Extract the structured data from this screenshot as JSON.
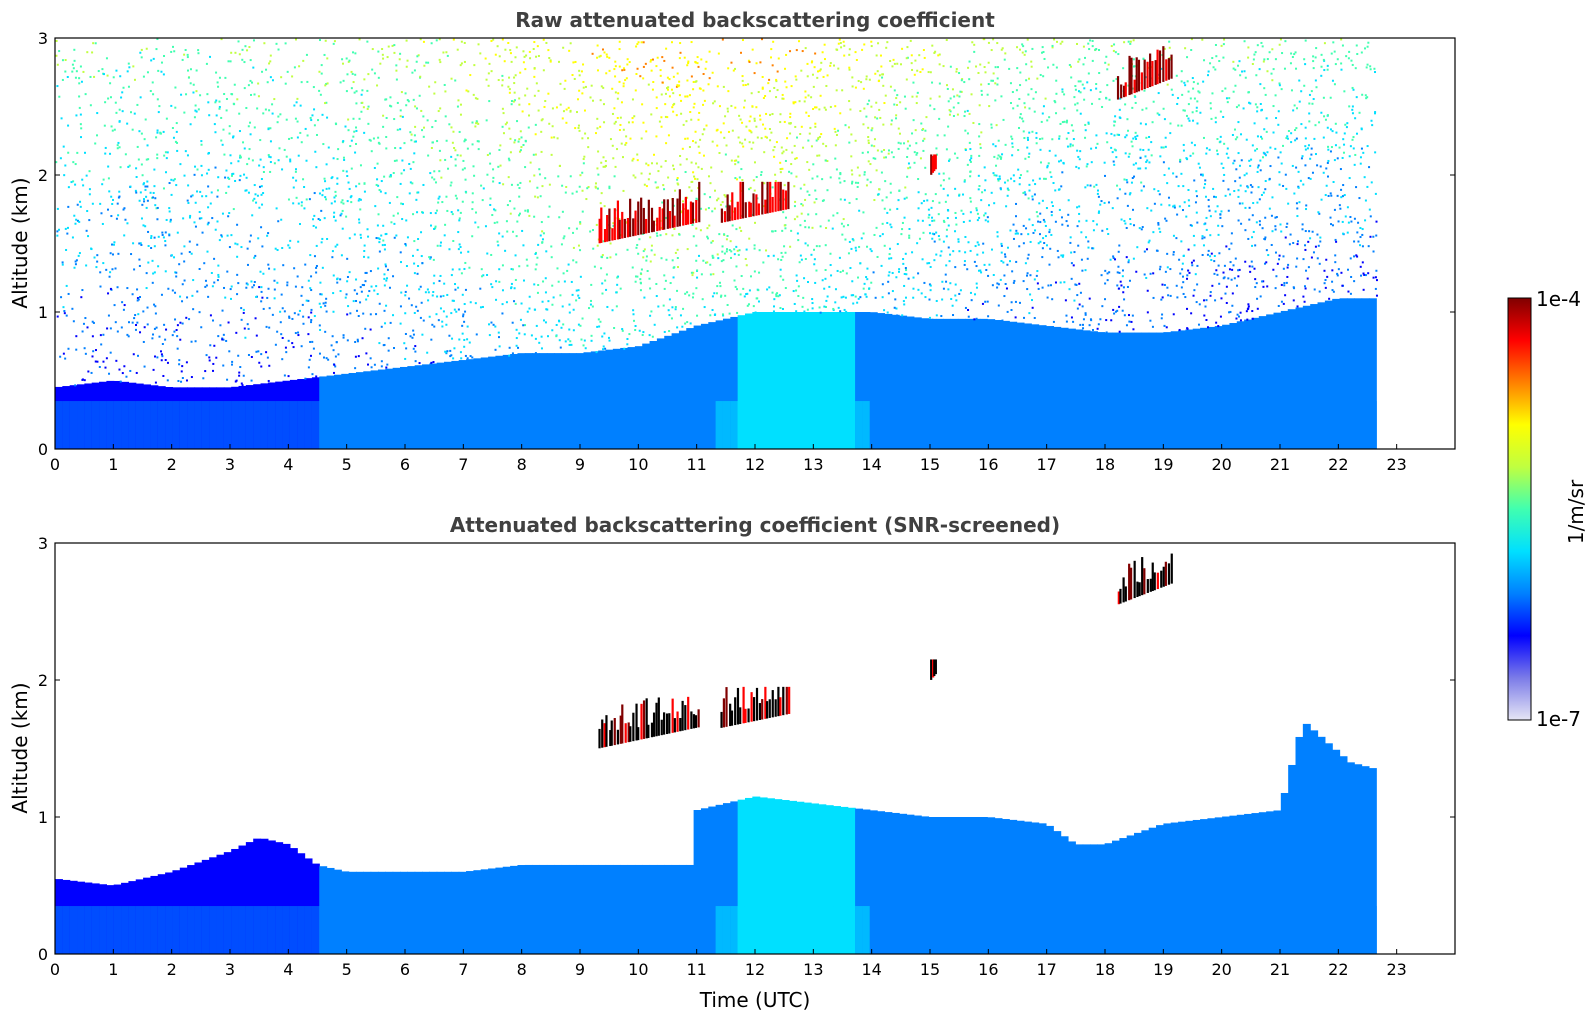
{
  "chart_data": [
    {
      "type": "heatmap",
      "title": "Raw attenuated backscattering coefficient",
      "xlabel": "",
      "ylabel": "Altitude (km)",
      "xlim": [
        0,
        24
      ],
      "ylim": [
        0,
        3
      ],
      "x_ticks": [
        "0",
        "1",
        "2",
        "3",
        "4",
        "5",
        "6",
        "7",
        "8",
        "9",
        "10",
        "11",
        "12",
        "13",
        "14",
        "15",
        "16",
        "17",
        "18",
        "19",
        "20",
        "21",
        "22",
        "23"
      ],
      "y_ticks": [
        "0",
        "1",
        "2",
        "3"
      ],
      "data_end_time": 22.65,
      "boundary_layer_top_km": [
        [
          0,
          0.45
        ],
        [
          1,
          0.5
        ],
        [
          2,
          0.45
        ],
        [
          3,
          0.45
        ],
        [
          4,
          0.5
        ],
        [
          5,
          0.55
        ],
        [
          6,
          0.6
        ],
        [
          7,
          0.65
        ],
        [
          8,
          0.7
        ],
        [
          9,
          0.7
        ],
        [
          10,
          0.75
        ],
        [
          11,
          0.9
        ],
        [
          12,
          1.0
        ],
        [
          13,
          1.0
        ],
        [
          14,
          1.0
        ],
        [
          15,
          0.95
        ],
        [
          16,
          0.95
        ],
        [
          17,
          0.9
        ],
        [
          18,
          0.85
        ],
        [
          19,
          0.85
        ],
        [
          20,
          0.9
        ],
        [
          21,
          1.0
        ],
        [
          22,
          1.1
        ],
        [
          22.65,
          1.1
        ]
      ],
      "clouds": [
        {
          "t_start": 9.3,
          "t_end": 11.05,
          "alt_bottom_km": 1.5,
          "alt_top_km": 1.95
        },
        {
          "t_start": 11.4,
          "t_end": 12.6,
          "alt_bottom_km": 1.65,
          "alt_top_km": 1.95
        },
        {
          "t_start": 15.0,
          "t_end": 15.1,
          "alt_bottom_km": 2.0,
          "alt_top_km": 2.15
        },
        {
          "t_start": 18.2,
          "t_end": 19.15,
          "alt_bottom_km": 2.55,
          "alt_top_km": 3.0
        }
      ]
    },
    {
      "type": "heatmap",
      "title": "Attenuated backscattering coefficient (SNR-screened)",
      "xlabel": "Time (UTC)",
      "ylabel": "Altitude (km)",
      "xlim": [
        0,
        24
      ],
      "ylim": [
        0,
        3
      ],
      "x_ticks": [
        "0",
        "1",
        "2",
        "3",
        "4",
        "5",
        "6",
        "7",
        "8",
        "9",
        "10",
        "11",
        "12",
        "13",
        "14",
        "15",
        "16",
        "17",
        "18",
        "19",
        "20",
        "21",
        "22",
        "23"
      ],
      "y_ticks": [
        "0",
        "1",
        "2",
        "3"
      ],
      "data_end_time": 22.65,
      "screened_layer_top_km": [
        [
          0,
          0.55
        ],
        [
          1,
          0.5
        ],
        [
          2,
          0.6
        ],
        [
          3,
          0.75
        ],
        [
          3.5,
          0.85
        ],
        [
          4,
          0.8
        ],
        [
          4.5,
          0.65
        ],
        [
          5,
          0.6
        ],
        [
          6,
          0.6
        ],
        [
          7,
          0.6
        ],
        [
          8,
          0.65
        ],
        [
          9,
          0.65
        ],
        [
          10,
          0.65
        ],
        [
          10.9,
          0.65
        ],
        [
          11.0,
          1.05
        ],
        [
          12,
          1.15
        ],
        [
          13,
          1.1
        ],
        [
          14,
          1.05
        ],
        [
          15,
          1.0
        ],
        [
          16,
          1.0
        ],
        [
          17,
          0.95
        ],
        [
          17.5,
          0.8
        ],
        [
          18,
          0.8
        ],
        [
          19,
          0.95
        ],
        [
          20,
          1.0
        ],
        [
          21,
          1.05
        ],
        [
          21.4,
          1.7
        ],
        [
          21.8,
          1.55
        ],
        [
          22.2,
          1.4
        ],
        [
          22.65,
          1.35
        ]
      ],
      "clouds": [
        {
          "t_start": 9.3,
          "t_end": 11.05,
          "alt_bottom_km": 1.5,
          "alt_top_km": 1.95
        },
        {
          "t_start": 11.4,
          "t_end": 12.6,
          "alt_bottom_km": 1.65,
          "alt_top_km": 1.95
        },
        {
          "t_start": 15.0,
          "t_end": 15.1,
          "alt_bottom_km": 2.0,
          "alt_top_km": 2.15
        },
        {
          "t_start": 18.2,
          "t_end": 19.15,
          "alt_bottom_km": 2.55,
          "alt_top_km": 3.0
        }
      ]
    }
  ],
  "colorbar": {
    "label": "1/m/sr",
    "max_label": "1e-4",
    "min_label": "1e-7",
    "scale": "log",
    "colormap": [
      "#e6e6f5",
      "#7b7be8",
      "#0000ff",
      "#0080ff",
      "#00e0ff",
      "#40ffb0",
      "#c0ff40",
      "#ffff00",
      "#ff8000",
      "#ff0000",
      "#800000"
    ]
  }
}
